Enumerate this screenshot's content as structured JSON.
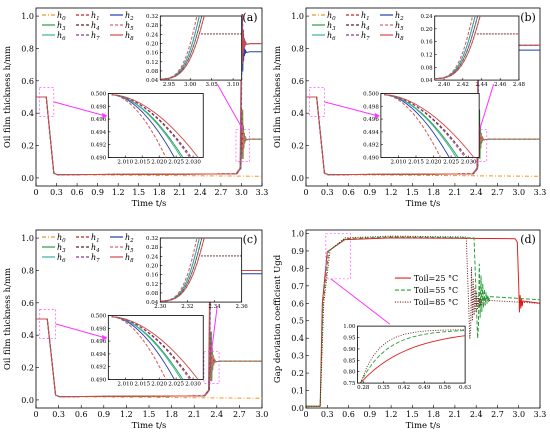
{
  "colors": {
    "h0": "#f7941d",
    "h1": "#cc2222",
    "h2": "#1f3ea8",
    "h3": "#2a9d3a",
    "h4": "#6b1a1a",
    "h5": "#e06666",
    "h6": "#35b0a0",
    "h7": "#8a3a8a",
    "h8": "#d04a4a",
    "zoom": "#ff33ff"
  },
  "chart_data": [
    {
      "type": "line",
      "panel": "(a)",
      "xlabel": "Time t/s",
      "ylabel": "Oil film thickness h/mm",
      "xlim": [
        0,
        3.3
      ],
      "ylim": [
        -0.05,
        1.05
      ],
      "xticks": [
        "0",
        "0.3",
        "0.6",
        "0.9",
        "1.2",
        "1.5",
        "1.8",
        "2.1",
        "2.4",
        "2.7",
        "3.0",
        "3.3"
      ],
      "yticks": [
        "0.0",
        "0.2",
        "0.4",
        "0.6",
        "0.8",
        "1.0"
      ],
      "legend": [
        "h0",
        "h1",
        "h2",
        "h3",
        "h4",
        "h5",
        "h6",
        "h7",
        "h8"
      ],
      "events": {
        "initial": 0.5,
        "drop_start": 0.15,
        "drop_end": 0.26,
        "rise": 3.0,
        "rise_end": 3.05
      },
      "finals": {
        "h0": 0.01,
        "h1": 0.24,
        "h2": 0.78,
        "h3": 0.24,
        "h4": 0.24,
        "h5": 0.24,
        "h6": 0.83,
        "h7": 0.83,
        "h8": 0.83
      },
      "inset1": {
        "xlim": [
          2.005,
          2.033
        ],
        "ylim": [
          0.49,
          0.5
        ],
        "xticks": [
          "2.010",
          "2.015",
          "2.020",
          "2.025",
          "2.030"
        ],
        "yticks": [
          "0.490",
          "0.492",
          "0.494",
          "0.496",
          "0.498",
          "0.500"
        ]
      },
      "inset2": {
        "xlim": [
          2.93,
          3.12
        ],
        "ylim": [
          0.04,
          0.32
        ],
        "xticks": [
          "2.95",
          "3.00",
          "3.05",
          "3.10"
        ],
        "yticks": [
          "0.04",
          "0.08",
          "0.12",
          "0.16",
          "0.20",
          "0.24",
          "0.28",
          "0.32"
        ]
      }
    },
    {
      "type": "line",
      "panel": "(b)",
      "xlabel": "Time t/s",
      "ylabel": "Oil film thickness h/mm",
      "xlim": [
        0,
        3.3
      ],
      "ylim": [
        -0.05,
        1.05
      ],
      "xticks": [
        "0",
        "0.3",
        "0.6",
        "0.9",
        "1.2",
        "1.5",
        "1.8",
        "2.1",
        "2.4",
        "2.7",
        "3.0",
        "3.3"
      ],
      "yticks": [
        "0.0",
        "0.2",
        "0.4",
        "0.6",
        "0.8",
        "1.0"
      ],
      "legend": [
        "h0",
        "h1",
        "h2",
        "h3",
        "h4",
        "h5",
        "h6",
        "h7",
        "h8"
      ],
      "events": {
        "initial": 0.5,
        "drop_start": 0.15,
        "drop_end": 0.26,
        "rise": 2.43,
        "rise_end": 2.49
      },
      "finals": {
        "h0": 0.01,
        "h1": 0.24,
        "h2": 0.79,
        "h3": 0.24,
        "h4": 0.24,
        "h5": 0.24,
        "h6": 0.82,
        "h7": 0.82,
        "h8": 0.82
      },
      "inset1": {
        "xlim": [
          2.005,
          2.033
        ],
        "ylim": [
          0.49,
          0.5
        ],
        "xticks": [
          "2.010",
          "2.015",
          "2.020",
          "2.025",
          "2.030"
        ],
        "yticks": [
          "0.490",
          "0.492",
          "0.494",
          "0.496",
          "0.498",
          "0.500"
        ]
      },
      "inset2": {
        "xlim": [
          2.39,
          2.48
        ],
        "ylim": [
          0.04,
          0.24
        ],
        "xticks": [
          "2.40",
          "2.42",
          "2.44",
          "2.46",
          "2.48"
        ],
        "yticks": [
          "0.04",
          "0.08",
          "0.12",
          "0.16",
          "0.20",
          "0.24"
        ]
      }
    },
    {
      "type": "line",
      "panel": "(c)",
      "xlabel": "Time t/s",
      "ylabel": "Oil film thickness h/mm",
      "xlim": [
        0,
        3.0
      ],
      "ylim": [
        -0.05,
        1.05
      ],
      "xticks": [
        "0",
        "0.3",
        "0.6",
        "0.9",
        "1.2",
        "1.5",
        "1.8",
        "2.1",
        "2.4",
        "2.7",
        "3.0"
      ],
      "yticks": [
        "0.0",
        "0.2",
        "0.4",
        "0.6",
        "0.8",
        "1.0"
      ],
      "legend": [
        "h0",
        "h1",
        "h2",
        "h3",
        "h4",
        "h5",
        "h6",
        "h7",
        "h8"
      ],
      "events": {
        "initial": 0.5,
        "drop_start": 0.15,
        "drop_end": 0.26,
        "rise": 2.31,
        "rise_end": 2.36
      },
      "finals": {
        "h0": 0.01,
        "h1": 0.24,
        "h2": 0.78,
        "h3": 0.24,
        "h4": 0.24,
        "h5": 0.24,
        "h6": 0.8,
        "h7": 0.8,
        "h8": 0.8
      },
      "inset1": {
        "xlim": [
          2.005,
          2.033
        ],
        "ylim": [
          0.49,
          0.5
        ],
        "xticks": [
          "2.010",
          "2.015",
          "2.020",
          "2.025",
          "2.030"
        ],
        "yticks": [
          "0.490",
          "0.492",
          "0.494",
          "0.496",
          "0.498",
          "0.500"
        ]
      },
      "inset2": {
        "xlim": [
          2.3,
          2.36
        ],
        "ylim": [
          0.04,
          0.32
        ],
        "xticks": [
          "2.30",
          "2.32",
          "2.34",
          "2.36"
        ],
        "yticks": [
          "0.04",
          "0.08",
          "0.12",
          "0.16",
          "0.20",
          "0.24",
          "0.28",
          "0.32"
        ]
      }
    },
    {
      "type": "line",
      "panel": "(d)",
      "xlabel": "Time t/s",
      "ylabel": "Gap deviation coefficient Ugd",
      "xlim": [
        0,
        3.3
      ],
      "ylim": [
        0.0,
        1.02
      ],
      "xticks": [
        "0",
        "0.3",
        "0.6",
        "0.9",
        "1.2",
        "1.5",
        "1.8",
        "2.1",
        "2.4",
        "2.7",
        "3.0",
        "3.3"
      ],
      "yticks": [
        "0.0",
        "0.1",
        "0.2",
        "0.3",
        "0.4",
        "0.5",
        "0.6",
        "0.7",
        "0.8",
        "0.9",
        "1.0"
      ],
      "series": [
        {
          "name": "Toil=25 °C",
          "style": "solid",
          "color": "#e02020",
          "rise_to": 0.975,
          "drop_at": 3.0,
          "final": 0.6
        },
        {
          "name": "Toil=55 °C",
          "style": "dashed",
          "color": "#2a9d3a",
          "rise_to": 0.98,
          "drop_at": 2.42,
          "final": 0.62
        },
        {
          "name": "Toil=85 °C",
          "style": "dotted",
          "color": "#6b1a1a",
          "rise_to": 0.985,
          "drop_at": 2.31,
          "final": 0.6
        }
      ],
      "inset": {
        "xlim": [
          0.26,
          0.63
        ],
        "ylim": [
          0.75,
          1.0
        ],
        "xticks": [
          "0.28",
          "0.35",
          "0.42",
          "0.49",
          "0.56",
          "0.63"
        ],
        "yticks": [
          "0.75",
          "0.80",
          "0.85",
          "0.90",
          "0.95",
          "1.00"
        ]
      }
    }
  ]
}
